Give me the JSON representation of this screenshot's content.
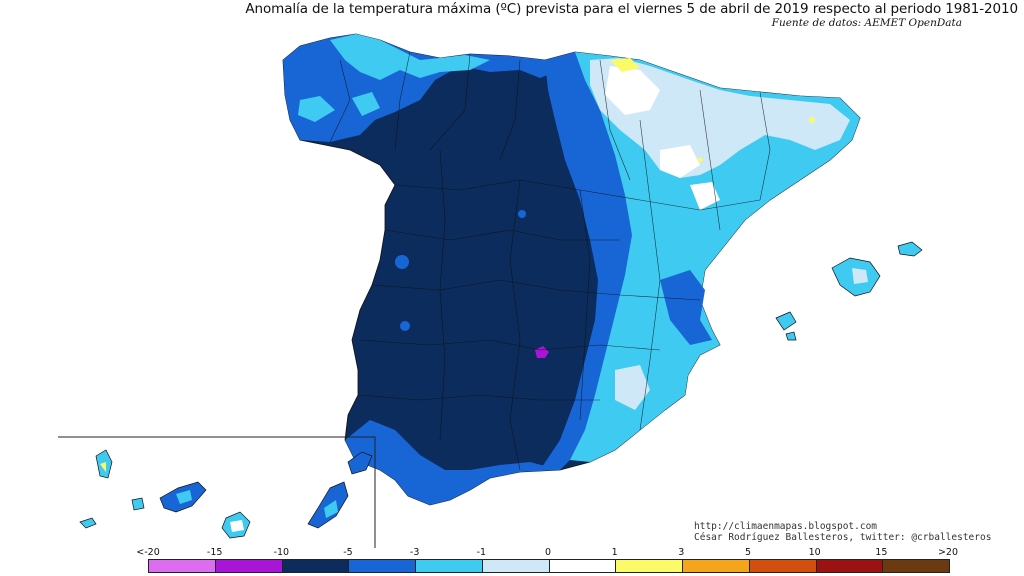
{
  "title": "Anomalía de la temperatura máxima (ºC) prevista para el viernes 5 de abril de 2019 respecto al periodo 1981-2010",
  "source": "Fuente de datos: AEMET OpenData",
  "credits": {
    "blog": "http://climaenmapas.blogspot.com",
    "author": "César Rodríguez Ballesteros, twitter: @crballesteros"
  },
  "legend": {
    "ticks": [
      "<-20",
      "-15",
      "-10",
      "-5",
      "-3",
      "-1",
      "0",
      "1",
      "3",
      "5",
      "10",
      "15",
      ">20"
    ],
    "colors": [
      "#dc6cf0",
      "#a815d6",
      "#0b2c5c",
      "#1866d6",
      "#3fcaf2",
      "#cfe8f7",
      "#ffffff",
      "#fbfb6a",
      "#f5a51c",
      "#d2500e",
      "#9a1212",
      "#6b3a10"
    ]
  },
  "palette": {
    "dark_navy": "#0b2c5c",
    "blue": "#1866d6",
    "cyan": "#3fcaf2",
    "light_blue": "#cfe8f7",
    "white": "#ffffff",
    "yellow": "#fbfb6a",
    "purple": "#a815d6"
  }
}
